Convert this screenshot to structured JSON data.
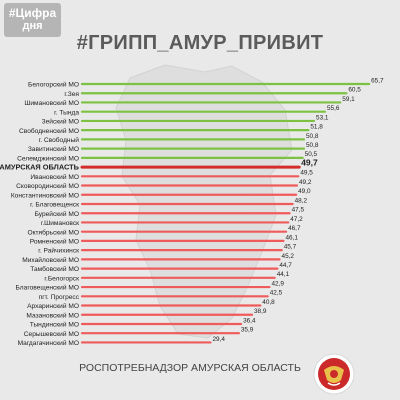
{
  "badge": {
    "line1": "#Цифра",
    "line2": "дня"
  },
  "title": "#ГРИПП_АМУР_ПРИВИТ",
  "footer": "РОСПОТРЕБНАДЗОР АМУРСКАЯ ОБЛАСТЬ",
  "colors": {
    "green": "#7dc142",
    "red": "#ef5b5b",
    "highlight": "#d42b2b",
    "text": "#222222"
  },
  "chart_data": {
    "type": "bar",
    "orientation": "horizontal",
    "grid": false,
    "categories": [
      "Белогорский МО",
      "г.Зея",
      "Шимановский МО",
      "г. Тында",
      "Зейский МО",
      "Свободненский МО",
      "г. Свободный",
      "Завитинский МО",
      "Селемджинский МО",
      "АМУРСКАЯ ОБЛАСТЬ",
      "Ивановский МО",
      "Сковородинский МО",
      "Константиновский МО",
      "г. Благовещенск",
      "Бурейский МО",
      "г.Шимановск",
      "Октябрьский МО",
      "Ромненский МО",
      "г. Райчихинск",
      "Михайловский МО",
      "Тамбовский МО",
      "г.Белогорск",
      "Благовещенский МО",
      "пгт. Прогресс",
      "Архаринский МО",
      "Мазановский МО",
      "Тындинский МО",
      "Серышевский МО",
      "Магдагачинский МО"
    ],
    "value_labels": [
      "65,7",
      "60,5",
      "59,1",
      "55,6",
      "53,1",
      "51,8",
      "50,8",
      "50,8",
      "50,5",
      "49,7",
      "49,5",
      "49,2",
      "49,0",
      "48,2",
      "47,5",
      "47,2",
      "46,7",
      "46,1",
      "45,7",
      "45,2",
      "44,7",
      "44,1",
      "42,9",
      "42,5",
      "40,8",
      "38,9",
      "36,4",
      "35,9",
      "29,4"
    ],
    "values": [
      65.7,
      60.5,
      59.1,
      55.6,
      53.1,
      51.8,
      50.8,
      50.8,
      50.5,
      49.7,
      49.5,
      49.2,
      49.0,
      48.2,
      47.5,
      47.2,
      46.7,
      46.1,
      45.7,
      45.2,
      44.7,
      44.1,
      42.9,
      42.5,
      40.8,
      38.9,
      36.4,
      35.9,
      29.4
    ],
    "highlight": "АМУРСКАЯ ОБЛАСТЬ",
    "green_count": 9
  }
}
